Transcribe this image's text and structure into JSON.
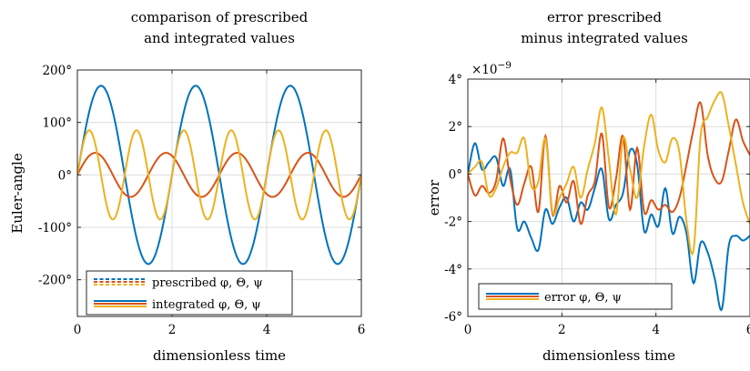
{
  "chart_data": [
    {
      "type": "line",
      "title": [
        "comparison of prescribed",
        "and integrated values"
      ],
      "xlabel": "dimensionless time",
      "ylabel": "Euler-angle",
      "xlim": [
        0,
        6
      ],
      "ylim": [
        -270,
        200
      ],
      "xticks": [
        0,
        2,
        4,
        6
      ],
      "xtick_labels": [
        "0",
        "2",
        "4",
        "6"
      ],
      "yticks": [
        -200,
        -100,
        0,
        100,
        200
      ],
      "ytick_labels": [
        "-200°",
        "-100°",
        "0°",
        "100°",
        "200°"
      ],
      "grid": true,
      "legend_position": "bottom",
      "legend": [
        "prescribed φ, Θ, ψ",
        "integrated φ, Θ, ψ"
      ],
      "series": [
        {
          "kind": "sine",
          "amplitude": 170,
          "frequency": 0.5,
          "phase": 0,
          "color": "#0072BD"
        },
        {
          "kind": "sine",
          "amplitude": 42,
          "frequency": 0.667,
          "phase": 0,
          "color": "#D95319"
        },
        {
          "kind": "sine",
          "amplitude": 85,
          "frequency": 1.0,
          "phase": 0,
          "color": "#EDB120"
        }
      ]
    },
    {
      "type": "line",
      "title": [
        "error prescribed",
        "minus integrated values"
      ],
      "xlabel": "dimensionless time",
      "ylabel": "error",
      "exponent_label": "×10",
      "exponent_power": "−9",
      "xlim": [
        0,
        6
      ],
      "ylim": [
        -6,
        4
      ],
      "xticks": [
        0,
        2,
        4,
        6
      ],
      "xtick_labels": [
        "0",
        "2",
        "4",
        "6"
      ],
      "yticks": [
        -6,
        -4,
        -2,
        0,
        2,
        4
      ],
      "ytick_labels": [
        "-6°",
        "-4°",
        "-2°",
        "0°",
        "2°",
        "4°"
      ],
      "grid": true,
      "legend_position": "bottom-left",
      "legend": [
        "error φ, Θ, ψ"
      ],
      "series": [
        {
          "color": "#0072BD",
          "x": [
            0,
            0.15,
            0.3,
            0.45,
            0.6,
            0.75,
            0.9,
            1.05,
            1.2,
            1.35,
            1.5,
            1.65,
            1.8,
            1.95,
            2.1,
            2.25,
            2.4,
            2.55,
            2.7,
            2.85,
            3.0,
            3.15,
            3.3,
            3.45,
            3.6,
            3.75,
            3.9,
            4.05,
            4.2,
            4.35,
            4.5,
            4.65,
            4.8,
            4.95,
            5.1,
            5.25,
            5.4,
            5.55,
            5.7,
            5.85,
            6.0
          ],
          "y": [
            0,
            1.3,
            0.2,
            0.5,
            0.7,
            -0.5,
            0.2,
            -2.3,
            -2.0,
            -2.7,
            -3.2,
            -1.5,
            -2.1,
            -1.4,
            -1.0,
            -2.0,
            -1.2,
            -1.5,
            -0.6,
            0.2,
            -1.9,
            -1.3,
            -0.8,
            1.0,
            0.4,
            -2.4,
            -1.7,
            -2.2,
            -0.6,
            -2.5,
            -1.8,
            -2.5,
            -4.6,
            -2.9,
            -3.3,
            -4.4,
            -5.7,
            -3.0,
            -2.6,
            -2.8,
            -2.6
          ]
        },
        {
          "color": "#D95319",
          "x": [
            0,
            0.15,
            0.3,
            0.45,
            0.6,
            0.75,
            0.9,
            1.05,
            1.2,
            1.35,
            1.5,
            1.65,
            1.8,
            1.95,
            2.1,
            2.25,
            2.4,
            2.55,
            2.7,
            2.85,
            3.0,
            3.15,
            3.3,
            3.45,
            3.6,
            3.75,
            3.9,
            4.05,
            4.2,
            4.35,
            4.5,
            4.65,
            4.8,
            4.95,
            5.1,
            5.25,
            5.4,
            5.55,
            5.7,
            5.85,
            6.0
          ],
          "y": [
            0,
            -0.9,
            -0.5,
            -0.8,
            -0.3,
            1.5,
            -0.2,
            -1.3,
            -0.4,
            0.3,
            -1.6,
            1.6,
            -1.7,
            -0.5,
            -1.2,
            -0.3,
            -2.1,
            -0.9,
            -0.3,
            1.7,
            -1.4,
            -0.2,
            1.6,
            -1.5,
            1.1,
            -1.6,
            -1.1,
            -1.5,
            -1.3,
            -1.6,
            -1.0,
            0.4,
            1.9,
            3.0,
            0.8,
            -0.2,
            -0.3,
            1.0,
            2.3,
            1.4,
            0.8
          ]
        },
        {
          "color": "#EDB120",
          "x": [
            0,
            0.15,
            0.3,
            0.45,
            0.6,
            0.75,
            0.9,
            1.05,
            1.2,
            1.35,
            1.5,
            1.65,
            1.8,
            1.95,
            2.1,
            2.25,
            2.4,
            2.55,
            2.7,
            2.85,
            3.0,
            3.15,
            3.3,
            3.45,
            3.6,
            3.75,
            3.9,
            4.05,
            4.2,
            4.35,
            4.5,
            4.65,
            4.8,
            4.95,
            5.1,
            5.25,
            5.4,
            5.55,
            5.7,
            5.85,
            6.0
          ],
          "y": [
            0,
            0.3,
            0.5,
            -0.9,
            -0.6,
            0.3,
            0.9,
            0.9,
            1.5,
            -0.5,
            -0.3,
            1.5,
            -1.6,
            -1.0,
            -0.4,
            0.3,
            -1.0,
            0.2,
            1.3,
            2.8,
            0.6,
            -1.7,
            1.5,
            0.2,
            -1.0,
            1.2,
            2.5,
            1.0,
            0.5,
            1.5,
            0.9,
            -2.0,
            -3.2,
            1.6,
            2.4,
            3.1,
            3.4,
            2.0,
            0.4,
            -1.2,
            -2.1
          ]
        }
      ]
    }
  ]
}
